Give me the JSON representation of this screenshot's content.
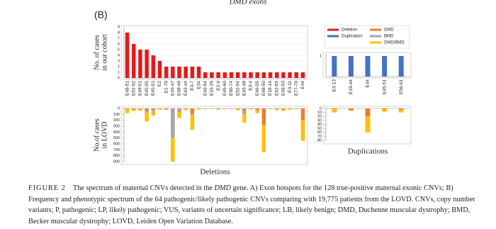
{
  "header_text": "DMD exons",
  "panel_label": "(B)",
  "caption": {
    "label": "FIGURE 2",
    "runs": [
      {
        "text": "The spectrum of maternal CNVs detected in the "
      },
      {
        "text": "DMD",
        "italic": true
      },
      {
        "text": " gene. A) Exon hotspots for the 128 true-positive maternal exonic CNVs; B) Frequency and phenotypic spectrum of the 64 pathogenic/likely pathogenic CNVs comparing with 19,775 patients from the LOVD. CNVs, copy number variants; P, pathogenic; LP, likely pathogenic; VUS, variants of uncertain significance; LB, likely benign; DMD, Duchenne muscular dystrophy; BMD, Becker muscular dystrophy; LOVD, Leiden Open Variation Database."
      }
    ]
  },
  "chart_data": [
    {
      "type": "bar",
      "ylabel": [
        "No. of cases",
        "in our cohort"
      ],
      "categories": [
        "E48-51",
        "E51-52",
        "E49-51",
        "E45-55",
        "E45-51",
        "E2",
        "E1-79",
        "E45-47",
        "E48-49",
        "E42-44",
        "E3-7",
        "E34",
        "E46-54",
        "E16-29",
        "E2-9",
        "E45-60",
        "E60-74",
        "E52-54",
        "E45-49",
        "E3-4",
        "E46-55",
        "E48-50",
        "E18-16",
        "E52-55",
        "E48-53",
        "E3-11",
        "E77-79",
        "E44"
      ],
      "series": [
        {
          "name": "Deletion",
          "color": "#e31a1c",
          "values": [
            8,
            6,
            5,
            5,
            4,
            3,
            2,
            2,
            2,
            2,
            2,
            2,
            1,
            1,
            1,
            1,
            1,
            1,
            1,
            1,
            1,
            1,
            1,
            1,
            1,
            1,
            1,
            1
          ]
        }
      ],
      "ylim": [
        0,
        9
      ],
      "yticks": [
        0,
        1,
        2,
        3,
        4,
        5,
        6,
        7,
        8,
        9
      ],
      "grid": true
    },
    {
      "type": "stacked_bar",
      "inverted": true,
      "ylabel": [
        "No.of cases",
        "in LOVD"
      ],
      "xlabel": "Deletions",
      "series": [
        {
          "name": "DMD",
          "color": "#ed7d31",
          "values": [
            10,
            20,
            10,
            30,
            20,
            10,
            20,
            0,
            20,
            10,
            80,
            5,
            5,
            5,
            10,
            5,
            5,
            10,
            30,
            5,
            20,
            280,
            5,
            10,
            20,
            10,
            5,
            200
          ]
        },
        {
          "name": "BMD",
          "color": "#a5a5a5",
          "values": [
            0,
            0,
            0,
            40,
            20,
            0,
            0,
            500,
            40,
            0,
            30,
            0,
            0,
            0,
            0,
            0,
            0,
            0,
            60,
            0,
            10,
            0,
            0,
            0,
            0,
            0,
            0,
            0
          ]
        },
        {
          "name": "DMD/BMD",
          "color": "#ffc000",
          "values": [
            70,
            20,
            30,
            150,
            80,
            10,
            0,
            400,
            100,
            20,
            250,
            10,
            5,
            0,
            10,
            5,
            0,
            20,
            150,
            10,
            50,
            460,
            5,
            20,
            20,
            10,
            5,
            350
          ]
        }
      ],
      "ylim": [
        0,
        900
      ],
      "yticks": [
        0,
        100,
        200,
        300,
        400,
        500,
        600,
        700,
        800,
        900
      ],
      "grid": false
    },
    {
      "type": "bar",
      "categories": [
        "E3-13",
        "E19-44",
        "E44",
        "E45-51",
        "E56-61"
      ],
      "series": [
        {
          "name": "Duplication",
          "color": "#4472c4",
          "values": [
            1,
            1,
            1,
            1,
            1
          ]
        }
      ],
      "ylim": [
        0,
        1
      ],
      "yticks": [
        1
      ],
      "grid": true
    },
    {
      "type": "stacked_bar",
      "inverted": true,
      "xlabel": "Duplications",
      "series": [
        {
          "name": "DMD",
          "color": "#ed7d31",
          "values": [
            2,
            4,
            20,
            2,
            3
          ]
        },
        {
          "name": "BMD",
          "color": "#a5a5a5",
          "values": [
            0,
            0,
            0,
            0,
            0
          ]
        },
        {
          "name": "DMD/BMD",
          "color": "#ffc000",
          "values": [
            8,
            2,
            40,
            6,
            7
          ]
        }
      ],
      "ylim": [
        0,
        80
      ],
      "yticks": [
        0,
        10,
        20,
        30,
        40,
        50,
        60,
        70,
        80
      ],
      "grid": false
    }
  ]
}
